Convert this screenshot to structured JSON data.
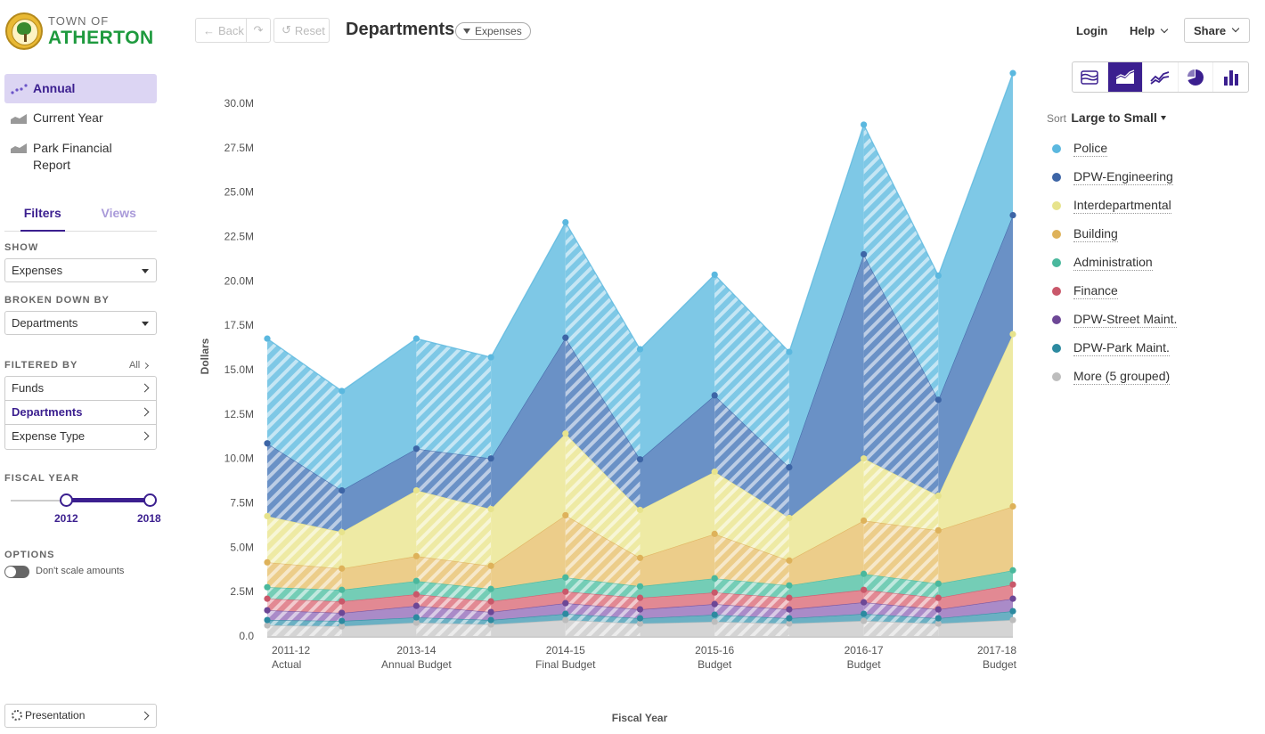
{
  "brand": {
    "line1": "TOWN OF",
    "line2": "ATHERTON"
  },
  "nav": [
    {
      "label": "Annual",
      "active": true
    },
    {
      "label": "Current Year",
      "active": false
    },
    {
      "label": "Park Financial Report",
      "active": false
    }
  ],
  "subtabs": {
    "filters": "Filters",
    "views": "Views"
  },
  "show": {
    "label": "SHOW",
    "value": "Expenses"
  },
  "broken_down": {
    "label": "BROKEN DOWN BY",
    "value": "Departments"
  },
  "filtered_by": {
    "label": "FILTERED BY",
    "all_link": "All",
    "items": [
      "Funds",
      "Departments",
      "Expense Type"
    ]
  },
  "fiscal_year": {
    "label": "FISCAL YEAR",
    "from": "2012",
    "to": "2018"
  },
  "options": {
    "label": "OPTIONS",
    "toggle_label": "Don't scale amounts"
  },
  "presentation_label": "Presentation",
  "header": {
    "back_label": "Back",
    "reset_label": "Reset",
    "title": "Departments",
    "pill_label": "Expenses",
    "login": "Login",
    "help": "Help",
    "share": "Share"
  },
  "chart_types": [
    "stacked-area-icon",
    "area-icon",
    "line-icon",
    "pie-icon",
    "bar-icon"
  ],
  "sort": {
    "prefix": "Sort",
    "value": "Large to Small"
  },
  "colors": {
    "accent": "#3b1f8f",
    "Police": "#7ec8e6",
    "DPW-Engineering": "#6a91c6",
    "Interdepartmental": "#eeeaa4",
    "Building": "#eccd8a",
    "Administration": "#74cdb6",
    "Finance": "#e28993",
    "DPW-Street Maint.": "#aa8bc8",
    "DPW-Park Maint.": "#6bb0c3",
    "More (5 grouped)": "#d4d4d4"
  },
  "chart_data": {
    "type": "area",
    "stacked": true,
    "title": "",
    "xlabel": "Fiscal Year",
    "ylabel": "Dollars",
    "ylim": [
      0,
      32000000
    ],
    "yticks": [
      "0.0",
      "2.5M",
      "5.0M",
      "7.5M",
      "10.0M",
      "12.5M",
      "15.0M",
      "17.5M",
      "20.0M",
      "22.5M",
      "25.0M",
      "27.5M",
      "30.0M"
    ],
    "x_tick_labels": [
      {
        "line1": "2011-12",
        "line2": "Actual"
      },
      {
        "line1": "2013-14",
        "line2": "Annual Budget"
      },
      {
        "line1": "2014-15",
        "line2": "Final Budget"
      },
      {
        "line1": "2015-16",
        "line2": "Budget"
      },
      {
        "line1": "2016-17",
        "line2": "Budget"
      },
      {
        "line1": "2017-18",
        "line2": "Budget"
      }
    ],
    "x_tick_positions": [
      0,
      2,
      4,
      6,
      8,
      10
    ],
    "num_points": 11,
    "legend_position": "right",
    "series": [
      {
        "name": "More (5 grouped)",
        "values": [
          600000,
          550000,
          750000,
          650000,
          900000,
          700000,
          800000,
          700000,
          850000,
          700000,
          900000
        ]
      },
      {
        "name": "DPW-Park Maint.",
        "values": [
          300000,
          300000,
          300000,
          250000,
          350000,
          300000,
          400000,
          300000,
          400000,
          300000,
          500000
        ]
      },
      {
        "name": "DPW-Street Maint.",
        "values": [
          550000,
          450000,
          650000,
          450000,
          600000,
          500000,
          600000,
          500000,
          650000,
          500000,
          700000
        ]
      },
      {
        "name": "Finance",
        "values": [
          650000,
          650000,
          650000,
          600000,
          650000,
          650000,
          650000,
          650000,
          700000,
          650000,
          800000
        ]
      },
      {
        "name": "Administration",
        "values": [
          650000,
          650000,
          750000,
          700000,
          800000,
          650000,
          800000,
          700000,
          900000,
          800000,
          800000
        ]
      },
      {
        "name": "Building",
        "values": [
          1400000,
          1200000,
          1400000,
          1300000,
          3500000,
          1600000,
          2500000,
          1400000,
          3000000,
          3000000,
          3600000
        ]
      },
      {
        "name": "Interdepartmental",
        "values": [
          2600000,
          2050000,
          3700000,
          3200000,
          4600000,
          2700000,
          3500000,
          2400000,
          3500000,
          1950000,
          9700000
        ]
      },
      {
        "name": "DPW-Engineering",
        "values": [
          4100000,
          2350000,
          2350000,
          2850000,
          5400000,
          2850000,
          4300000,
          2850000,
          11500000,
          5400000,
          6700000
        ]
      },
      {
        "name": "Police",
        "values": [
          5900000,
          5600000,
          6200000,
          5700000,
          6500000,
          6200000,
          6800000,
          6500000,
          7300000,
          7000000,
          8000000
        ]
      }
    ]
  },
  "legend": [
    "Police",
    "DPW-Engineering",
    "Interdepartmental",
    "Building",
    "Administration",
    "Finance",
    "DPW-Street Maint.",
    "DPW-Park Maint.",
    "More (5 grouped)"
  ]
}
